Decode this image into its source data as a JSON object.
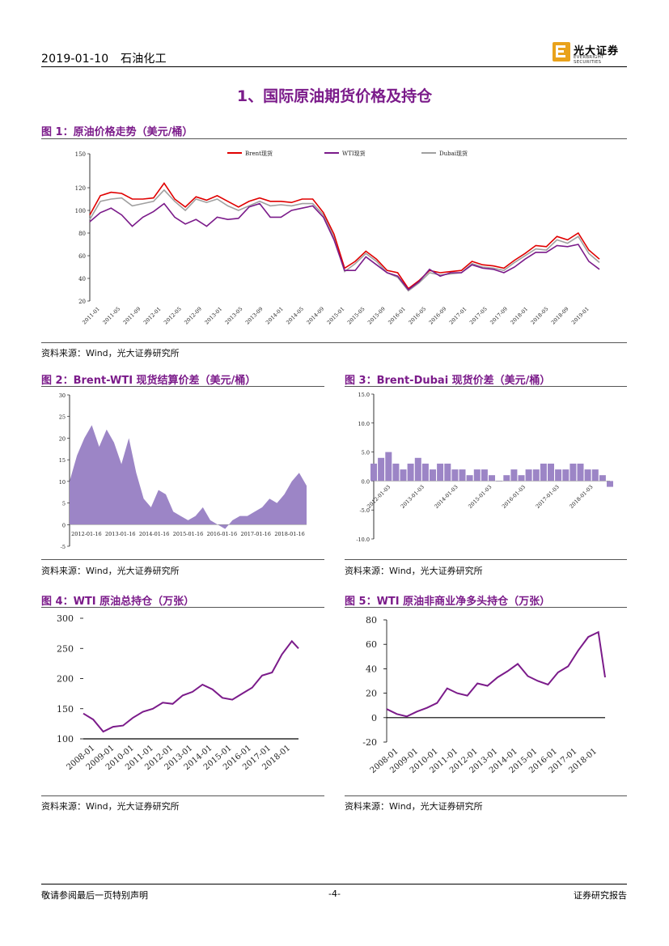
{
  "header": {
    "date": "2019-01-10",
    "sector": "石油化工"
  },
  "logo": {
    "name_cn": "光大证券",
    "name_en": "EVERBRIGHT SECURITIES"
  },
  "section_title": "1、国际原油期货价格及持仓",
  "figures": {
    "fig1": {
      "title": "图 1：原油价格走势（美元/桶）",
      "source": "资料来源：Wind，光大证券研究所"
    },
    "fig2": {
      "title": "图 2：Brent-WTI 现货结算价差（美元/桶）",
      "source": "资料来源：Wind，光大证券研究所"
    },
    "fig3": {
      "title": "图 3：Brent-Dubai 现货价差（美元/桶）",
      "source": "资料来源：Wind，光大证券研究所"
    },
    "fig4": {
      "title": "图 4：WTI 原油总持仓（万张）",
      "source": "资料来源：Wind，光大证券研究所"
    },
    "fig5": {
      "title": "图 5：WTI 原油非商业净多头持仓（万张）",
      "source": "资料来源：Wind，光大证券研究所"
    }
  },
  "footer": {
    "left": "敬请参阅最后一页特别声明",
    "center": "-4-",
    "right": "证券研究报告"
  },
  "colors": {
    "accent": "#7b1b8a",
    "brent": "#e00000",
    "wti": "#7b1b8a",
    "dubai": "#a0a0a0",
    "area": "#9c85c6"
  },
  "chart_data": [
    {
      "id": "fig1",
      "type": "line",
      "ylim": [
        20,
        150
      ],
      "yticks": [
        20,
        40,
        60,
        80,
        100,
        120,
        150
      ],
      "x_tick_labels": [
        "2011-01",
        "2011-05",
        "2011-09",
        "2012-01",
        "2012-05",
        "2012-09",
        "2013-01",
        "2013-05",
        "2013-09",
        "2014-01",
        "2014-05",
        "2014-09",
        "2015-01",
        "2015-05",
        "2015-09",
        "2016-01",
        "2016-05",
        "2016-09",
        "2017-01",
        "2017-05",
        "2017-09",
        "2018-01",
        "2018-05",
        "2018-09",
        "2019-01"
      ],
      "x": [
        "2011-01",
        "2011-03",
        "2011-05",
        "2011-07",
        "2011-09",
        "2011-11",
        "2012-01",
        "2012-03",
        "2012-05",
        "2012-07",
        "2012-09",
        "2012-11",
        "2013-01",
        "2013-03",
        "2013-05",
        "2013-07",
        "2013-09",
        "2013-11",
        "2014-01",
        "2014-03",
        "2014-05",
        "2014-07",
        "2014-09",
        "2014-11",
        "2015-01",
        "2015-03",
        "2015-05",
        "2015-07",
        "2015-09",
        "2015-11",
        "2016-01",
        "2016-03",
        "2016-05",
        "2016-07",
        "2016-09",
        "2016-11",
        "2017-01",
        "2017-03",
        "2017-05",
        "2017-07",
        "2017-09",
        "2017-11",
        "2018-01",
        "2018-03",
        "2018-05",
        "2018-07",
        "2018-09",
        "2018-11",
        "2019-01"
      ],
      "series": [
        {
          "name": "Brent现货",
          "values": [
            96,
            113,
            116,
            115,
            110,
            110,
            111,
            124,
            110,
            103,
            112,
            109,
            113,
            108,
            103,
            108,
            111,
            108,
            108,
            107,
            110,
            110,
            98,
            79,
            49,
            55,
            64,
            57,
            47,
            45,
            31,
            38,
            47,
            45,
            46,
            47,
            55,
            52,
            51,
            49,
            56,
            62,
            69,
            68,
            77,
            74,
            80,
            65,
            57
          ]
        },
        {
          "name": "WTI现货",
          "values": [
            90,
            98,
            102,
            96,
            86,
            94,
            99,
            106,
            94,
            88,
            92,
            86,
            94,
            92,
            93,
            103,
            106,
            94,
            94,
            100,
            102,
            104,
            94,
            74,
            47,
            47,
            59,
            52,
            45,
            42,
            30,
            37,
            48,
            42,
            45,
            45,
            52,
            49,
            48,
            45,
            50,
            57,
            63,
            63,
            69,
            68,
            70,
            55,
            48
          ]
        },
        {
          "name": "Dubai现货",
          "values": [
            92,
            108,
            110,
            111,
            104,
            106,
            108,
            118,
            108,
            100,
            110,
            107,
            110,
            104,
            100,
            104,
            108,
            104,
            105,
            104,
            106,
            106,
            96,
            76,
            46,
            53,
            62,
            55,
            45,
            41,
            29,
            36,
            45,
            43,
            44,
            45,
            53,
            50,
            49,
            47,
            54,
            60,
            66,
            65,
            74,
            71,
            77,
            62,
            54
          ]
        }
      ]
    },
    {
      "id": "fig2",
      "type": "area",
      "y_tick_labels": [
        "30",
        "25",
        "20",
        "15",
        "10",
        "5",
        "0",
        "-5"
      ],
      "ylim": [
        -5,
        30
      ],
      "x_tick_labels": [
        "2012-01-16",
        "2013-01-16",
        "2014-01-16",
        "2015-01-16",
        "2016-01-16",
        "2017-01-16",
        "2018-01-16"
      ],
      "x": [
        "2011-01",
        "2011-04",
        "2011-07",
        "2011-10",
        "2012-01",
        "2012-04",
        "2012-07",
        "2012-10",
        "2013-01",
        "2013-04",
        "2013-07",
        "2013-10",
        "2014-01",
        "2014-04",
        "2014-07",
        "2014-10",
        "2015-01",
        "2015-04",
        "2015-07",
        "2015-10",
        "2016-01",
        "2016-04",
        "2016-07",
        "2016-10",
        "2017-01",
        "2017-04",
        "2017-07",
        "2017-10",
        "2018-01",
        "2018-04",
        "2018-07",
        "2018-10",
        "2019-01"
      ],
      "values": [
        10,
        16,
        20,
        23,
        18,
        22,
        19,
        14,
        20,
        12,
        6,
        4,
        8,
        7,
        3,
        2,
        1,
        2,
        4,
        1,
        0,
        -1,
        1,
        2,
        2,
        3,
        4,
        6,
        5,
        7,
        10,
        12,
        9
      ]
    },
    {
      "id": "fig3",
      "type": "bar",
      "y_tick_labels": [
        "15.0",
        "10.0",
        "5.0",
        "0.0",
        "-5.0",
        "-10.0"
      ],
      "ylim": [
        -10,
        15
      ],
      "x_tick_labels": [
        "2012-01-03",
        "2013-01-03",
        "2014-01-03",
        "2015-01-03",
        "2016-01-03",
        "2017-01-03",
        "2018-01-03"
      ],
      "x": [
        "2011-01",
        "2011-04",
        "2011-07",
        "2011-10",
        "2012-01",
        "2012-04",
        "2012-07",
        "2012-10",
        "2013-01",
        "2013-04",
        "2013-07",
        "2013-10",
        "2014-01",
        "2014-04",
        "2014-07",
        "2014-10",
        "2015-01",
        "2015-04",
        "2015-07",
        "2015-10",
        "2016-01",
        "2016-04",
        "2016-07",
        "2016-10",
        "2017-01",
        "2017-04",
        "2017-07",
        "2017-10",
        "2018-01",
        "2018-04",
        "2018-07",
        "2018-10",
        "2019-01"
      ],
      "values": [
        3,
        4,
        5,
        3,
        2,
        3,
        4,
        3,
        2,
        3,
        3,
        2,
        2,
        1,
        2,
        2,
        1,
        0,
        1,
        2,
        1,
        2,
        2,
        3,
        3,
        2,
        2,
        3,
        3,
        2,
        2,
        1,
        -1
      ]
    },
    {
      "id": "fig4",
      "type": "line",
      "ylim": [
        100,
        300
      ],
      "y_tick_labels": [
        "300",
        "250",
        "200",
        "150",
        "100"
      ],
      "x_tick_labels": [
        "2008-01",
        "2009-01",
        "2010-01",
        "2011-01",
        "2012-01",
        "2013-01",
        "2014-01",
        "2015-01",
        "2016-01",
        "2017-01",
        "2018-01"
      ],
      "x": [
        "2008-01",
        "2008-07",
        "2009-01",
        "2009-07",
        "2010-01",
        "2010-07",
        "2011-01",
        "2011-07",
        "2012-01",
        "2012-07",
        "2013-01",
        "2013-07",
        "2014-01",
        "2014-07",
        "2015-01",
        "2015-07",
        "2016-01",
        "2016-07",
        "2017-01",
        "2017-07",
        "2018-01",
        "2018-07",
        "2018-11"
      ],
      "values": [
        142,
        132,
        112,
        120,
        122,
        135,
        145,
        150,
        160,
        158,
        172,
        178,
        190,
        182,
        168,
        165,
        175,
        185,
        205,
        210,
        240,
        262,
        250
      ]
    },
    {
      "id": "fig5",
      "type": "line",
      "ylim": [
        -20,
        80
      ],
      "y_tick_labels": [
        "80",
        "60",
        "40",
        "20",
        "0",
        "-20"
      ],
      "x_tick_labels": [
        "2008-01",
        "2009-01",
        "2010-01",
        "2011-01",
        "2012-01",
        "2013-01",
        "2014-01",
        "2015-01",
        "2016-01",
        "2017-01",
        "2018-01"
      ],
      "x": [
        "2008-01",
        "2008-07",
        "2009-01",
        "2009-07",
        "2010-01",
        "2010-07",
        "2011-01",
        "2011-07",
        "2012-01",
        "2012-07",
        "2013-01",
        "2013-07",
        "2014-01",
        "2014-07",
        "2015-01",
        "2015-07",
        "2016-01",
        "2016-07",
        "2017-01",
        "2017-07",
        "2018-01",
        "2018-07",
        "2018-11"
      ],
      "values": [
        7,
        3,
        1,
        5,
        8,
        12,
        24,
        20,
        18,
        28,
        26,
        33,
        38,
        44,
        34,
        30,
        27,
        37,
        42,
        55,
        66,
        70,
        33
      ]
    }
  ]
}
